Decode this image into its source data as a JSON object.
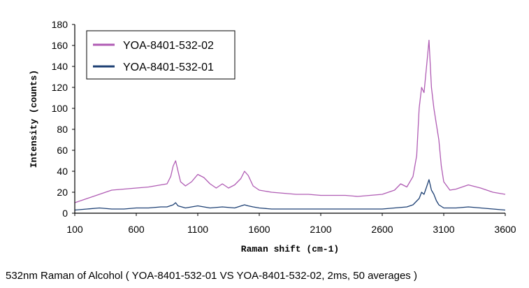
{
  "caption": "532nm Raman of Alcohol ( YOA-8401-532-01 VS YOA-8401-532-02, 2ms, 50 averages )",
  "chart_data": {
    "type": "line",
    "xlabel": "Raman shift (cm-1)",
    "ylabel": "Intensity (counts)",
    "xlim": [
      100,
      3600
    ],
    "ylim": [
      0,
      180
    ],
    "x_ticks": [
      100,
      600,
      1100,
      1600,
      2100,
      2600,
      3100,
      3600
    ],
    "y_ticks": [
      0,
      20,
      40,
      60,
      80,
      100,
      120,
      140,
      160,
      180
    ],
    "grid": false,
    "legend_position": "top-left",
    "series": [
      {
        "name": "YOA-8401-532-02",
        "color": "#b05cb4",
        "points": [
          [
            100,
            10
          ],
          [
            200,
            14
          ],
          [
            300,
            18
          ],
          [
            400,
            22
          ],
          [
            500,
            23
          ],
          [
            600,
            24
          ],
          [
            700,
            25
          ],
          [
            800,
            27
          ],
          [
            850,
            28
          ],
          [
            880,
            35
          ],
          [
            900,
            45
          ],
          [
            920,
            50
          ],
          [
            940,
            40
          ],
          [
            960,
            30
          ],
          [
            1000,
            26
          ],
          [
            1050,
            30
          ],
          [
            1100,
            37
          ],
          [
            1150,
            34
          ],
          [
            1200,
            28
          ],
          [
            1250,
            24
          ],
          [
            1300,
            28
          ],
          [
            1350,
            24
          ],
          [
            1400,
            27
          ],
          [
            1450,
            33
          ],
          [
            1480,
            40
          ],
          [
            1510,
            36
          ],
          [
            1550,
            26
          ],
          [
            1600,
            22
          ],
          [
            1700,
            20
          ],
          [
            1800,
            19
          ],
          [
            1900,
            18
          ],
          [
            2000,
            18
          ],
          [
            2100,
            17
          ],
          [
            2200,
            17
          ],
          [
            2300,
            17
          ],
          [
            2400,
            16
          ],
          [
            2500,
            17
          ],
          [
            2600,
            18
          ],
          [
            2700,
            22
          ],
          [
            2750,
            28
          ],
          [
            2800,
            25
          ],
          [
            2850,
            35
          ],
          [
            2880,
            55
          ],
          [
            2900,
            100
          ],
          [
            2920,
            120
          ],
          [
            2940,
            115
          ],
          [
            2960,
            140
          ],
          [
            2980,
            165
          ],
          [
            3000,
            120
          ],
          [
            3020,
            100
          ],
          [
            3040,
            85
          ],
          [
            3060,
            70
          ],
          [
            3080,
            45
          ],
          [
            3100,
            30
          ],
          [
            3150,
            22
          ],
          [
            3200,
            23
          ],
          [
            3300,
            27
          ],
          [
            3400,
            24
          ],
          [
            3500,
            20
          ],
          [
            3600,
            18
          ]
        ]
      },
      {
        "name": "YOA-8401-532-01",
        "color": "#1c3f73",
        "points": [
          [
            100,
            3
          ],
          [
            200,
            4
          ],
          [
            300,
            5
          ],
          [
            400,
            4
          ],
          [
            500,
            4
          ],
          [
            600,
            5
          ],
          [
            700,
            5
          ],
          [
            800,
            6
          ],
          [
            850,
            6
          ],
          [
            900,
            8
          ],
          [
            920,
            10
          ],
          [
            940,
            7
          ],
          [
            1000,
            5
          ],
          [
            1100,
            7
          ],
          [
            1200,
            5
          ],
          [
            1300,
            6
          ],
          [
            1400,
            5
          ],
          [
            1480,
            8
          ],
          [
            1510,
            7
          ],
          [
            1550,
            6
          ],
          [
            1600,
            5
          ],
          [
            1700,
            4
          ],
          [
            1800,
            4
          ],
          [
            1900,
            4
          ],
          [
            2000,
            4
          ],
          [
            2100,
            4
          ],
          [
            2200,
            4
          ],
          [
            2300,
            4
          ],
          [
            2400,
            4
          ],
          [
            2500,
            4
          ],
          [
            2600,
            4
          ],
          [
            2700,
            5
          ],
          [
            2800,
            6
          ],
          [
            2850,
            8
          ],
          [
            2900,
            14
          ],
          [
            2920,
            20
          ],
          [
            2940,
            18
          ],
          [
            2960,
            25
          ],
          [
            2980,
            32
          ],
          [
            3000,
            22
          ],
          [
            3020,
            18
          ],
          [
            3040,
            12
          ],
          [
            3060,
            8
          ],
          [
            3100,
            5
          ],
          [
            3200,
            5
          ],
          [
            3300,
            6
          ],
          [
            3400,
            5
          ],
          [
            3500,
            4
          ],
          [
            3600,
            3
          ]
        ]
      }
    ]
  }
}
